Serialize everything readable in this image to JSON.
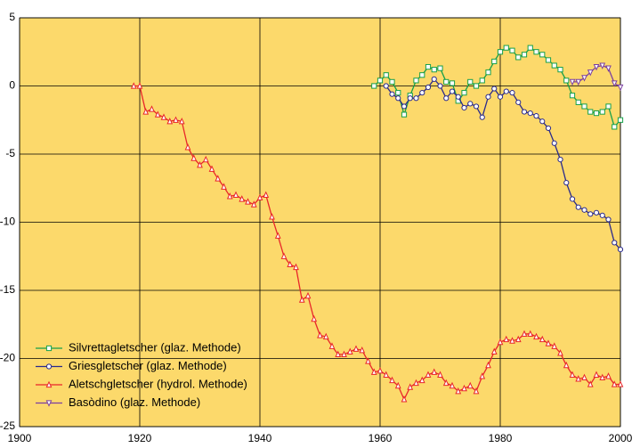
{
  "chart_data": {
    "type": "line",
    "xlim": [
      1900,
      2000
    ],
    "xticks": [
      1900,
      1920,
      1940,
      1960,
      1980,
      2000
    ],
    "ylim": [
      -25,
      5
    ],
    "yticks": [
      5,
      0,
      -5,
      -10,
      -15,
      -20,
      -25
    ],
    "grid": true,
    "legend": "lower left",
    "series": [
      {
        "name": "Silvrettagletscher (glaz. Methode)",
        "color": "#16a04a",
        "marker": "square",
        "x": [
          1959,
          1960,
          1961,
          1962,
          1963,
          1964,
          1965,
          1966,
          1967,
          1968,
          1969,
          1970,
          1971,
          1972,
          1973,
          1974,
          1975,
          1976,
          1977,
          1978,
          1979,
          1980,
          1981,
          1982,
          1983,
          1984,
          1985,
          1986,
          1987,
          1988,
          1989,
          1990,
          1991,
          1992,
          1993,
          1994,
          1995,
          1996,
          1997,
          1998,
          1999,
          2000
        ],
        "values": [
          0,
          0.4,
          0.8,
          0.3,
          -0.5,
          -2.1,
          -0.7,
          0.4,
          0.8,
          1.4,
          1.2,
          1.3,
          0.3,
          0.2,
          -1.1,
          -0.5,
          0.3,
          0.0,
          0.4,
          1.0,
          1.8,
          2.5,
          2.8,
          2.6,
          2.1,
          2.3,
          2.8,
          2.5,
          2.3,
          1.9,
          1.5,
          1.2,
          0.4,
          -0.7,
          -1.2,
          -1.5,
          -1.9,
          -2.0,
          -1.9,
          -1.5,
          -3.0,
          -2.5
        ]
      },
      {
        "name": "Griesgletscher (glaz. Methode)",
        "color": "#2a2a8c",
        "marker": "circle",
        "x": [
          1961,
          1962,
          1963,
          1964,
          1965,
          1966,
          1967,
          1968,
          1969,
          1970,
          1971,
          1972,
          1973,
          1974,
          1975,
          1976,
          1977,
          1978,
          1979,
          1980,
          1981,
          1982,
          1983,
          1984,
          1985,
          1986,
          1987,
          1988,
          1989,
          1990,
          1991,
          1992,
          1993,
          1994,
          1995,
          1996,
          1997,
          1998,
          1999,
          2000
        ],
        "values": [
          0,
          -0.6,
          -0.9,
          -1.5,
          -0.9,
          -0.9,
          -0.5,
          -0.1,
          0.5,
          0,
          -0.9,
          -0.4,
          -0.8,
          -1.6,
          -1.3,
          -1.5,
          -2.3,
          -0.8,
          -0.2,
          -0.8,
          -0.4,
          -0.5,
          -1.2,
          -1.9,
          -2.0,
          -2.2,
          -2.6,
          -3.1,
          -4.2,
          -5.4,
          -7.1,
          -8.3,
          -8.9,
          -9.1,
          -9.4,
          -9.3,
          -9.5,
          -9.8,
          -11.5,
          -12.0
        ]
      },
      {
        "name": "Aletschgletscher (hydrol. Methode)",
        "color": "#e8262a",
        "marker": "triangle",
        "x": [
          1919,
          1920,
          1921,
          1922,
          1923,
          1924,
          1925,
          1926,
          1927,
          1928,
          1929,
          1930,
          1931,
          1932,
          1933,
          1934,
          1935,
          1936,
          1937,
          1938,
          1939,
          1940,
          1941,
          1942,
          1943,
          1944,
          1945,
          1946,
          1947,
          1948,
          1949,
          1950,
          1951,
          1952,
          1953,
          1954,
          1955,
          1956,
          1957,
          1958,
          1959,
          1960,
          1961,
          1962,
          1963,
          1964,
          1965,
          1966,
          1967,
          1968,
          1969,
          1970,
          1971,
          1972,
          1973,
          1974,
          1975,
          1976,
          1977,
          1978,
          1979,
          1980,
          1981,
          1982,
          1983,
          1984,
          1985,
          1986,
          1987,
          1988,
          1989,
          1990,
          1991,
          1992,
          1993,
          1994,
          1995,
          1996,
          1997,
          1998,
          1999,
          2000
        ],
        "values": [
          0,
          0,
          -1.9,
          -1.7,
          -2.1,
          -2.3,
          -2.6,
          -2.5,
          -2.6,
          -4.5,
          -5.3,
          -5.8,
          -5.4,
          -6.1,
          -6.8,
          -7.4,
          -8.1,
          -8.0,
          -8.3,
          -8.5,
          -8.7,
          -8.2,
          -8.0,
          -9.6,
          -11.0,
          -12.5,
          -13.1,
          -13.3,
          -15.7,
          -15.4,
          -17.1,
          -18.3,
          -18.4,
          -19.1,
          -19.7,
          -19.7,
          -19.5,
          -19.3,
          -19.4,
          -20.2,
          -21.0,
          -20.9,
          -21.2,
          -21.6,
          -22.0,
          -23.0,
          -22.1,
          -21.8,
          -21.6,
          -21.2,
          -21.0,
          -21.2,
          -21.8,
          -22.0,
          -22.4,
          -22.2,
          -22.0,
          -22.4,
          -21.3,
          -20.5,
          -19.5,
          -18.8,
          -18.6,
          -18.7,
          -18.6,
          -18.2,
          -18.2,
          -18.4,
          -18.6,
          -18.9,
          -19.1,
          -19.6,
          -20.5,
          -21.2,
          -21.5,
          -21.4,
          -21.9,
          -21.2,
          -21.4,
          -21.3,
          -21.9,
          -21.9
        ]
      },
      {
        "name": "Basòdino (glaz. Methode)",
        "color": "#7a3fa0",
        "marker": "triangle-down",
        "x": [
          1992,
          1993,
          1994,
          1995,
          1996,
          1997,
          1998,
          1999,
          2000
        ],
        "values": [
          0.3,
          0.3,
          0.6,
          1.0,
          1.4,
          1.5,
          1.3,
          0.2,
          -0.1
        ]
      }
    ]
  }
}
